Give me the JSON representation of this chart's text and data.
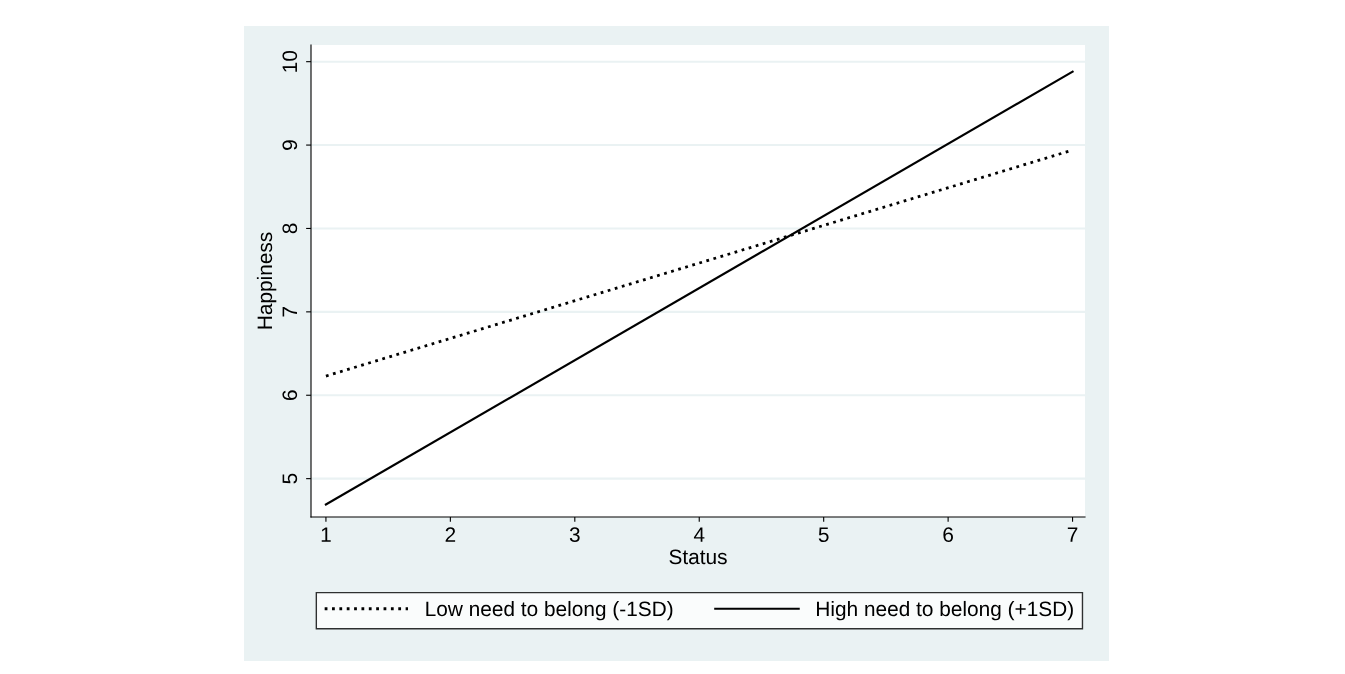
{
  "chart_data": {
    "type": "line",
    "xlabel": "Status",
    "ylabel": "Happiness",
    "x": [
      1,
      7
    ],
    "series": [
      {
        "name": "Low need to belong (-1SD)",
        "color": "#000000",
        "values": [
          6.23,
          8.94
        ],
        "line_style": "dotted"
      },
      {
        "name": "High need to belong (+1SD)",
        "color": "#000000",
        "values": [
          4.69,
          9.88
        ],
        "line_style": "solid"
      }
    ],
    "xlim": [
      0.88,
      7.1
    ],
    "ylim": [
      4.54,
      10.2
    ],
    "xticks": [
      1,
      2,
      3,
      4,
      5,
      6,
      7
    ],
    "yticks": [
      5,
      6,
      7,
      8,
      9,
      10
    ],
    "grid": "y",
    "legend": "bottom",
    "marker": "none"
  }
}
